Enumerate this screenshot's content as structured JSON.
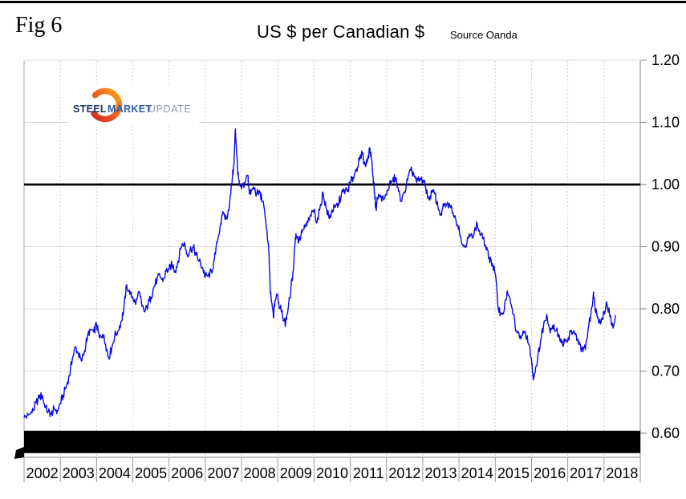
{
  "figure": {
    "label": "Fig 6"
  },
  "header": {
    "title": "US $ per Canadian $",
    "source": "Source Oanda"
  },
  "logo": {
    "words": [
      {
        "text": "STEEL",
        "color": "#1b3766"
      },
      {
        "text": "MARKET",
        "color": "#2d5ca6"
      },
      {
        "text": "UPDATE",
        "color": "#8a9cb8"
      }
    ],
    "swoosh_colors": [
      "#cf2e21",
      "#f26522",
      "#faa61a"
    ]
  },
  "colors": {
    "line": "#0a0ae0",
    "reference_line": "#000000",
    "bottom_bar": "#000000",
    "grid_h": "#d9d9d9",
    "grid_v": "#c2c2c2",
    "axis": "#808080",
    "tick_text": "#000000"
  },
  "chart_data": {
    "type": "line",
    "title": "US $ per Canadian $",
    "source": "Source Oanda",
    "xlabel": "",
    "ylabel": "",
    "xlim": [
      2002,
      2019
    ],
    "ylim": [
      0.56,
      1.2
    ],
    "x_tick_labels": [
      "2002",
      "2003",
      "2004",
      "2005",
      "2006",
      "2007",
      "2008",
      "2009",
      "2010",
      "2011",
      "2012",
      "2013",
      "2014",
      "2015",
      "2016",
      "2017",
      "2018"
    ],
    "y_ticks": [
      0.6,
      0.7,
      0.8,
      0.9,
      1.0,
      1.1,
      1.2
    ],
    "y_tick_labels": [
      "0.60",
      "0.70",
      "0.80",
      "0.90",
      "1.00",
      "1.10",
      "1.20"
    ],
    "grid": {
      "horizontal": "solid-light",
      "vertical": "dotted-light"
    },
    "legend": "none",
    "reference_line": {
      "value": 1.0,
      "color": "#000000"
    },
    "bottom_bar": {
      "from_value": 0.568,
      "to_value": 0.604,
      "color": "#000000"
    },
    "series": [
      {
        "name": "US $ per Canadian $",
        "color": "#0a0ae0",
        "points": [
          [
            2002.0,
            0.625
          ],
          [
            2002.08,
            0.628
          ],
          [
            2002.17,
            0.631
          ],
          [
            2002.25,
            0.636
          ],
          [
            2002.33,
            0.649
          ],
          [
            2002.42,
            0.657
          ],
          [
            2002.5,
            0.661
          ],
          [
            2002.58,
            0.641
          ],
          [
            2002.67,
            0.635
          ],
          [
            2002.75,
            0.631
          ],
          [
            2002.83,
            0.639
          ],
          [
            2002.92,
            0.637
          ],
          [
            2003.0,
            0.648
          ],
          [
            2003.08,
            0.661
          ],
          [
            2003.17,
            0.677
          ],
          [
            2003.25,
            0.692
          ],
          [
            2003.33,
            0.719
          ],
          [
            2003.42,
            0.739
          ],
          [
            2003.5,
            0.727
          ],
          [
            2003.58,
            0.716
          ],
          [
            2003.67,
            0.733
          ],
          [
            2003.75,
            0.757
          ],
          [
            2003.83,
            0.767
          ],
          [
            2003.92,
            0.763
          ],
          [
            2004.0,
            0.775
          ],
          [
            2004.08,
            0.753
          ],
          [
            2004.17,
            0.759
          ],
          [
            2004.25,
            0.743
          ],
          [
            2004.33,
            0.722
          ],
          [
            2004.42,
            0.737
          ],
          [
            2004.5,
            0.757
          ],
          [
            2004.58,
            0.764
          ],
          [
            2004.67,
            0.778
          ],
          [
            2004.75,
            0.798
          ],
          [
            2004.83,
            0.839
          ],
          [
            2004.92,
            0.823
          ],
          [
            2005.0,
            0.819
          ],
          [
            2005.08,
            0.807
          ],
          [
            2005.17,
            0.828
          ],
          [
            2005.25,
            0.804
          ],
          [
            2005.33,
            0.795
          ],
          [
            2005.42,
            0.807
          ],
          [
            2005.5,
            0.819
          ],
          [
            2005.58,
            0.835
          ],
          [
            2005.67,
            0.848
          ],
          [
            2005.75,
            0.853
          ],
          [
            2005.83,
            0.844
          ],
          [
            2005.92,
            0.861
          ],
          [
            2006.0,
            0.864
          ],
          [
            2006.08,
            0.872
          ],
          [
            2006.17,
            0.861
          ],
          [
            2006.25,
            0.877
          ],
          [
            2006.33,
            0.899
          ],
          [
            2006.42,
            0.907
          ],
          [
            2006.5,
            0.887
          ],
          [
            2006.58,
            0.895
          ],
          [
            2006.67,
            0.899
          ],
          [
            2006.75,
            0.887
          ],
          [
            2006.83,
            0.877
          ],
          [
            2006.92,
            0.867
          ],
          [
            2007.0,
            0.852
          ],
          [
            2007.08,
            0.854
          ],
          [
            2007.17,
            0.859
          ],
          [
            2007.25,
            0.879
          ],
          [
            2007.33,
            0.907
          ],
          [
            2007.42,
            0.937
          ],
          [
            2007.5,
            0.953
          ],
          [
            2007.58,
            0.945
          ],
          [
            2007.67,
            0.969
          ],
          [
            2007.75,
            1.013
          ],
          [
            2007.79,
            1.032
          ],
          [
            2007.83,
            1.089
          ],
          [
            2007.87,
            1.046
          ],
          [
            2007.9,
            1.016
          ],
          [
            2007.94,
            0.999
          ],
          [
            2008.0,
            0.993
          ],
          [
            2008.08,
            1.003
          ],
          [
            2008.17,
            1.015
          ],
          [
            2008.21,
            0.991
          ],
          [
            2008.25,
            0.984
          ],
          [
            2008.33,
            0.996
          ],
          [
            2008.42,
            0.985
          ],
          [
            2008.5,
            0.987
          ],
          [
            2008.58,
            0.973
          ],
          [
            2008.67,
            0.941
          ],
          [
            2008.75,
            0.896
          ],
          [
            2008.79,
            0.831
          ],
          [
            2008.83,
            0.811
          ],
          [
            2008.88,
            0.786
          ],
          [
            2008.92,
            0.813
          ],
          [
            2009.0,
            0.823
          ],
          [
            2009.04,
            0.801
          ],
          [
            2009.08,
            0.806
          ],
          [
            2009.17,
            0.781
          ],
          [
            2009.21,
            0.773
          ],
          [
            2009.25,
            0.791
          ],
          [
            2009.33,
            0.817
          ],
          [
            2009.42,
            0.859
          ],
          [
            2009.46,
            0.896
          ],
          [
            2009.5,
            0.921
          ],
          [
            2009.58,
            0.909
          ],
          [
            2009.67,
            0.923
          ],
          [
            2009.75,
            0.931
          ],
          [
            2009.83,
            0.939
          ],
          [
            2009.92,
            0.949
          ],
          [
            2010.0,
            0.959
          ],
          [
            2010.08,
            0.939
          ],
          [
            2010.17,
            0.965
          ],
          [
            2010.25,
            0.987
          ],
          [
            2010.33,
            0.963
          ],
          [
            2010.42,
            0.945
          ],
          [
            2010.5,
            0.959
          ],
          [
            2010.58,
            0.963
          ],
          [
            2010.67,
            0.969
          ],
          [
            2010.75,
            0.983
          ],
          [
            2010.83,
            0.991
          ],
          [
            2010.92,
            0.989
          ],
          [
            2011.0,
            1.003
          ],
          [
            2011.08,
            1.011
          ],
          [
            2011.17,
            1.025
          ],
          [
            2011.25,
            1.039
          ],
          [
            2011.33,
            1.049
          ],
          [
            2011.42,
            1.029
          ],
          [
            2011.5,
            1.047
          ],
          [
            2011.54,
            1.059
          ],
          [
            2011.58,
            1.043
          ],
          [
            2011.63,
            1.013
          ],
          [
            2011.67,
            0.986
          ],
          [
            2011.71,
            0.959
          ],
          [
            2011.75,
            0.979
          ],
          [
            2011.83,
            0.983
          ],
          [
            2011.92,
            0.975
          ],
          [
            2012.0,
            0.983
          ],
          [
            2012.08,
            1.001
          ],
          [
            2012.17,
            1.007
          ],
          [
            2012.25,
            1.011
          ],
          [
            2012.33,
            0.989
          ],
          [
            2012.42,
            0.973
          ],
          [
            2012.5,
            0.987
          ],
          [
            2012.58,
            1.007
          ],
          [
            2012.67,
            1.023
          ],
          [
            2012.75,
            1.017
          ],
          [
            2012.83,
            1.003
          ],
          [
            2012.92,
            1.009
          ],
          [
            2013.0,
            1.007
          ],
          [
            2013.08,
            0.995
          ],
          [
            2013.17,
            0.977
          ],
          [
            2013.25,
            0.987
          ],
          [
            2013.33,
            0.985
          ],
          [
            2013.42,
            0.963
          ],
          [
            2013.5,
            0.953
          ],
          [
            2013.58,
            0.965
          ],
          [
            2013.67,
            0.969
          ],
          [
            2013.75,
            0.965
          ],
          [
            2013.83,
            0.955
          ],
          [
            2013.92,
            0.941
          ],
          [
            2014.0,
            0.933
          ],
          [
            2014.08,
            0.905
          ],
          [
            2014.17,
            0.901
          ],
          [
            2014.25,
            0.913
          ],
          [
            2014.33,
            0.919
          ],
          [
            2014.42,
            0.923
          ],
          [
            2014.5,
            0.937
          ],
          [
            2014.58,
            0.919
          ],
          [
            2014.67,
            0.913
          ],
          [
            2014.75,
            0.895
          ],
          [
            2014.83,
            0.883
          ],
          [
            2014.92,
            0.873
          ],
          [
            2015.0,
            0.857
          ],
          [
            2015.08,
            0.801
          ],
          [
            2015.17,
            0.793
          ],
          [
            2015.25,
            0.799
          ],
          [
            2015.33,
            0.829
          ],
          [
            2015.42,
            0.809
          ],
          [
            2015.5,
            0.791
          ],
          [
            2015.58,
            0.765
          ],
          [
            2015.67,
            0.753
          ],
          [
            2015.75,
            0.757
          ],
          [
            2015.83,
            0.763
          ],
          [
            2015.92,
            0.743
          ],
          [
            2016.0,
            0.719
          ],
          [
            2016.04,
            0.691
          ],
          [
            2016.08,
            0.696
          ],
          [
            2016.17,
            0.721
          ],
          [
            2016.25,
            0.749
          ],
          [
            2016.33,
            0.773
          ],
          [
            2016.42,
            0.791
          ],
          [
            2016.5,
            0.767
          ],
          [
            2016.58,
            0.773
          ],
          [
            2016.67,
            0.765
          ],
          [
            2016.75,
            0.759
          ],
          [
            2016.83,
            0.745
          ],
          [
            2016.92,
            0.747
          ],
          [
            2017.0,
            0.749
          ],
          [
            2017.08,
            0.763
          ],
          [
            2017.17,
            0.765
          ],
          [
            2017.25,
            0.749
          ],
          [
            2017.33,
            0.743
          ],
          [
            2017.42,
            0.731
          ],
          [
            2017.5,
            0.743
          ],
          [
            2017.58,
            0.773
          ],
          [
            2017.67,
            0.803
          ],
          [
            2017.71,
            0.827
          ],
          [
            2017.75,
            0.803
          ],
          [
            2017.83,
            0.787
          ],
          [
            2017.92,
            0.779
          ],
          [
            2018.0,
            0.796
          ],
          [
            2018.08,
            0.809
          ],
          [
            2018.17,
            0.787
          ],
          [
            2018.25,
            0.769
          ],
          [
            2018.31,
            0.79
          ]
        ]
      }
    ]
  }
}
